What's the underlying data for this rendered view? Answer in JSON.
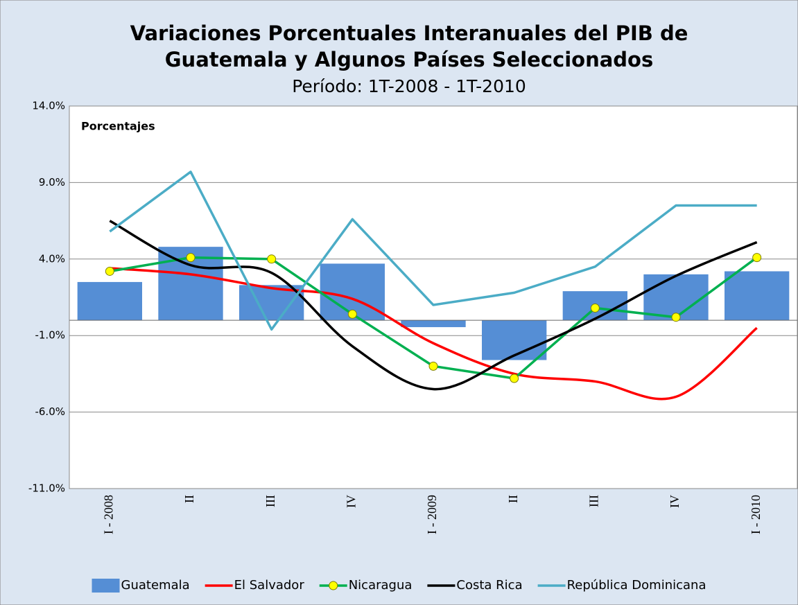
{
  "chart_data": {
    "type": "bar_line",
    "title": [
      "Variaciones Porcentuales Interanuales del PIB de",
      "Guatemala y Algunos Países Seleccionados"
    ],
    "subtitle": "Período: 1T-2008  -  1T-2010",
    "annotation": "Porcentajes",
    "categories": [
      "I - 2008",
      "II",
      "III",
      "IV",
      "I - 2009",
      "II",
      "III",
      "IV",
      "I - 2010"
    ],
    "series": [
      {
        "name": "Guatemala",
        "kind": "bar",
        "color": "#558ed5",
        "values": [
          2.5,
          4.8,
          2.3,
          3.7,
          -0.45,
          -2.6,
          1.9,
          3.0,
          3.2
        ]
      },
      {
        "name": "El Salvador",
        "kind": "line",
        "smooth": true,
        "color": "#ff0000",
        "values": [
          3.4,
          3.0,
          2.1,
          1.4,
          -1.5,
          -3.5,
          -4.0,
          -5.0,
          -0.5
        ]
      },
      {
        "name": "Nicaragua",
        "kind": "line",
        "smooth": false,
        "marker": "#ffff00",
        "color": "#00b050",
        "values": [
          3.2,
          4.1,
          4.0,
          0.4,
          -3.0,
          -3.8,
          0.8,
          0.2,
          4.1
        ]
      },
      {
        "name": "Costa Rica",
        "kind": "line",
        "smooth": true,
        "color": "#000000",
        "values": [
          6.5,
          3.6,
          3.1,
          -1.7,
          -4.5,
          -2.3,
          0.1,
          2.9,
          5.1
        ]
      },
      {
        "name": "República Dominicana",
        "kind": "line",
        "smooth": false,
        "color": "#4bacc6",
        "values": [
          5.8,
          9.7,
          -0.6,
          6.6,
          1.0,
          1.8,
          3.5,
          7.5,
          7.5
        ]
      }
    ],
    "ylim": [
      -11,
      14
    ],
    "yticks": [
      {
        "value": -11,
        "label": "-11.0%"
      },
      {
        "value": -6,
        "label": "-6.0%"
      },
      {
        "value": -1,
        "label": "-1.0%"
      },
      {
        "value": 4,
        "label": "4.0%"
      },
      {
        "value": 9,
        "label": "9.0%"
      },
      {
        "value": 14,
        "label": "14.0%"
      }
    ],
    "grid": true,
    "legend": "bottom"
  }
}
